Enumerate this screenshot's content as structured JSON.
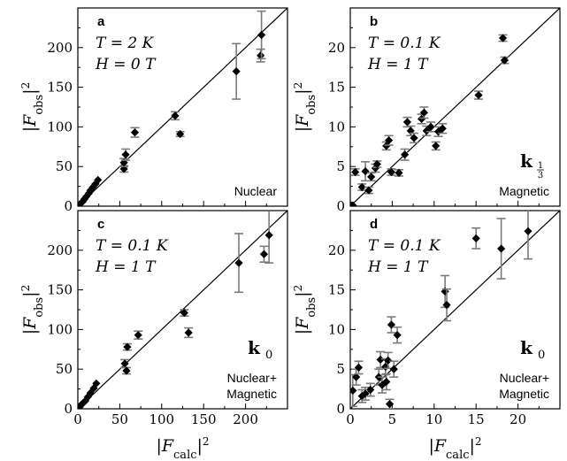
{
  "chart_data": [
    {
      "type": "scatter",
      "panel": "a",
      "conditions": [
        "T = 2 K",
        "H = 0 T"
      ],
      "caption": [
        "Nuclear"
      ],
      "k_label": "",
      "k_sub": "",
      "xlim": [
        0,
        250
      ],
      "ylim": [
        0,
        250
      ],
      "xticks": [
        0,
        50,
        100,
        150,
        200
      ],
      "yticks": [
        0,
        50,
        100,
        150,
        200
      ],
      "show_xticklabels": false,
      "ylabel": "|F_obs|^2",
      "xlabel": "",
      "points": [
        {
          "x": 2,
          "y": 2,
          "err": 0
        },
        {
          "x": 4,
          "y": 4,
          "err": 0
        },
        {
          "x": 6,
          "y": 6,
          "err": 0
        },
        {
          "x": 8,
          "y": 9,
          "err": 0
        },
        {
          "x": 10,
          "y": 12,
          "err": 0
        },
        {
          "x": 13,
          "y": 16,
          "err": 0
        },
        {
          "x": 15,
          "y": 20,
          "err": 0
        },
        {
          "x": 18,
          "y": 24,
          "err": 0
        },
        {
          "x": 21,
          "y": 28,
          "err": 0
        },
        {
          "x": 24,
          "y": 33,
          "err": 0
        },
        {
          "x": 55,
          "y": 47,
          "err": 4
        },
        {
          "x": 55,
          "y": 55,
          "err": 5
        },
        {
          "x": 57,
          "y": 65,
          "err": 7
        },
        {
          "x": 68,
          "y": 93,
          "err": 6
        },
        {
          "x": 116,
          "y": 114,
          "err": 5
        },
        {
          "x": 122,
          "y": 91,
          "err": 3
        },
        {
          "x": 189,
          "y": 170,
          "err": 35
        },
        {
          "x": 218,
          "y": 190,
          "err": 8
        },
        {
          "x": 219,
          "y": 216,
          "err": 30
        }
      ]
    },
    {
      "type": "scatter",
      "panel": "b",
      "conditions": [
        "T = 0.1 K",
        "H = 1 T"
      ],
      "caption": [
        "Magnetic"
      ],
      "k_label": "k",
      "k_sub": "1/3",
      "xlim": [
        0,
        25
      ],
      "ylim": [
        0,
        25
      ],
      "xticks": [
        0,
        5,
        10,
        15,
        20
      ],
      "yticks": [
        0,
        5,
        10,
        15,
        20
      ],
      "show_xticklabels": false,
      "ylabel": "|F_obs|^2",
      "xlabel": "",
      "points": [
        {
          "x": 0.1,
          "y": 0.1,
          "err": 0
        },
        {
          "x": 0.3,
          "y": 0.1,
          "err": 0
        },
        {
          "x": 0.6,
          "y": 4.3,
          "err": 0.4
        },
        {
          "x": 1.4,
          "y": 2.4,
          "err": 0.4
        },
        {
          "x": 1.8,
          "y": 4.4,
          "err": 1.2
        },
        {
          "x": 2.2,
          "y": 2.0,
          "err": 0.4
        },
        {
          "x": 2.5,
          "y": 3.7,
          "err": 0.5
        },
        {
          "x": 3.0,
          "y": 4.8,
          "err": 0.5
        },
        {
          "x": 3.2,
          "y": 5.3,
          "err": 0.4
        },
        {
          "x": 4.3,
          "y": 7.6,
          "err": 0.5
        },
        {
          "x": 4.6,
          "y": 8.3,
          "err": 0.6
        },
        {
          "x": 4.9,
          "y": 4.3,
          "err": 0.4
        },
        {
          "x": 5.8,
          "y": 4.2,
          "err": 0.4
        },
        {
          "x": 6.5,
          "y": 6.5,
          "err": 0.7
        },
        {
          "x": 6.8,
          "y": 10.6,
          "err": 0.6
        },
        {
          "x": 7.2,
          "y": 9.5,
          "err": 0.6
        },
        {
          "x": 7.6,
          "y": 8.6,
          "err": 0.6
        },
        {
          "x": 8.5,
          "y": 11.0,
          "err": 0.6
        },
        {
          "x": 8.8,
          "y": 11.8,
          "err": 0.7
        },
        {
          "x": 9.1,
          "y": 9.5,
          "err": 0.6
        },
        {
          "x": 9.6,
          "y": 10.0,
          "err": 0.6
        },
        {
          "x": 10.2,
          "y": 7.6,
          "err": 0.5
        },
        {
          "x": 10.5,
          "y": 9.4,
          "err": 0.6
        },
        {
          "x": 11.0,
          "y": 9.8,
          "err": 0.6
        },
        {
          "x": 15.3,
          "y": 14.0,
          "err": 0.5
        },
        {
          "x": 18.2,
          "y": 21.2,
          "err": 0.4
        },
        {
          "x": 18.4,
          "y": 18.4,
          "err": 0.4
        }
      ]
    },
    {
      "type": "scatter",
      "panel": "c",
      "conditions": [
        "T = 0.1 K",
        "H = 1 T"
      ],
      "caption": [
        "Nuclear+",
        "Magnetic"
      ],
      "k_label": "k",
      "k_sub": "0",
      "xlim": [
        0,
        250
      ],
      "ylim": [
        0,
        250
      ],
      "xticks": [
        0,
        50,
        100,
        150,
        200
      ],
      "yticks": [
        0,
        50,
        100,
        150,
        200
      ],
      "show_xticklabels": true,
      "ylabel": "|F_obs|^2",
      "xlabel": "|F_calc|^2",
      "points": [
        {
          "x": 2,
          "y": 2,
          "err": 0
        },
        {
          "x": 4,
          "y": 5,
          "err": 0
        },
        {
          "x": 6,
          "y": 7,
          "err": 0
        },
        {
          "x": 9,
          "y": 10,
          "err": 0
        },
        {
          "x": 12,
          "y": 15,
          "err": 0
        },
        {
          "x": 15,
          "y": 20,
          "err": 0
        },
        {
          "x": 19,
          "y": 26,
          "err": 0
        },
        {
          "x": 22,
          "y": 32,
          "err": 0
        },
        {
          "x": 56,
          "y": 57,
          "err": 5
        },
        {
          "x": 58,
          "y": 48,
          "err": 4
        },
        {
          "x": 59,
          "y": 78,
          "err": 4
        },
        {
          "x": 72,
          "y": 93,
          "err": 5
        },
        {
          "x": 127,
          "y": 121,
          "err": 4
        },
        {
          "x": 132,
          "y": 96,
          "err": 6
        },
        {
          "x": 192,
          "y": 184,
          "err": 37
        },
        {
          "x": 222,
          "y": 195,
          "err": 10
        },
        {
          "x": 228,
          "y": 219,
          "err": 35
        }
      ]
    },
    {
      "type": "scatter",
      "panel": "d",
      "conditions": [
        "T = 0.1 K",
        "H = 1 T"
      ],
      "caption": [
        "Nuclear+",
        "Magnetic"
      ],
      "k_label": "k",
      "k_sub": "0",
      "xlim": [
        0,
        25
      ],
      "ylim": [
        0,
        25
      ],
      "xticks": [
        0,
        5,
        10,
        15,
        20
      ],
      "yticks": [
        0,
        5,
        10,
        15,
        20
      ],
      "show_xticklabels": true,
      "ylabel": "|F_obs|^2",
      "xlabel": "|F_calc|^2",
      "points": [
        {
          "x": 0.3,
          "y": 2.3,
          "err": 2.0
        },
        {
          "x": 0.7,
          "y": 4.0,
          "err": 1.0
        },
        {
          "x": 1.0,
          "y": 5.2,
          "err": 0.8
        },
        {
          "x": 1.4,
          "y": 1.6,
          "err": 0.8
        },
        {
          "x": 1.8,
          "y": 1.9,
          "err": 0.8
        },
        {
          "x": 2.4,
          "y": 2.4,
          "err": 0.8
        },
        {
          "x": 3.4,
          "y": 4.0,
          "err": 1.0
        },
        {
          "x": 3.6,
          "y": 6.2,
          "err": 1.0
        },
        {
          "x": 3.8,
          "y": 3.0,
          "err": 1.0
        },
        {
          "x": 4.2,
          "y": 5.3,
          "err": 1.0
        },
        {
          "x": 4.3,
          "y": 3.4,
          "err": 1.0
        },
        {
          "x": 4.5,
          "y": 6.1,
          "err": 1.0
        },
        {
          "x": 4.7,
          "y": 0.6,
          "err": 0.6
        },
        {
          "x": 4.9,
          "y": 10.6,
          "err": 1.0
        },
        {
          "x": 5.2,
          "y": 5.0,
          "err": 1.0
        },
        {
          "x": 5.6,
          "y": 9.3,
          "err": 1.0
        },
        {
          "x": 11.3,
          "y": 14.8,
          "err": 2.0
        },
        {
          "x": 11.5,
          "y": 13.1,
          "err": 2.0
        },
        {
          "x": 15.0,
          "y": 21.5,
          "err": 1.3
        },
        {
          "x": 18.0,
          "y": 20.2,
          "err": 3.8
        },
        {
          "x": 21.2,
          "y": 22.4,
          "err": 3.5
        }
      ]
    }
  ]
}
